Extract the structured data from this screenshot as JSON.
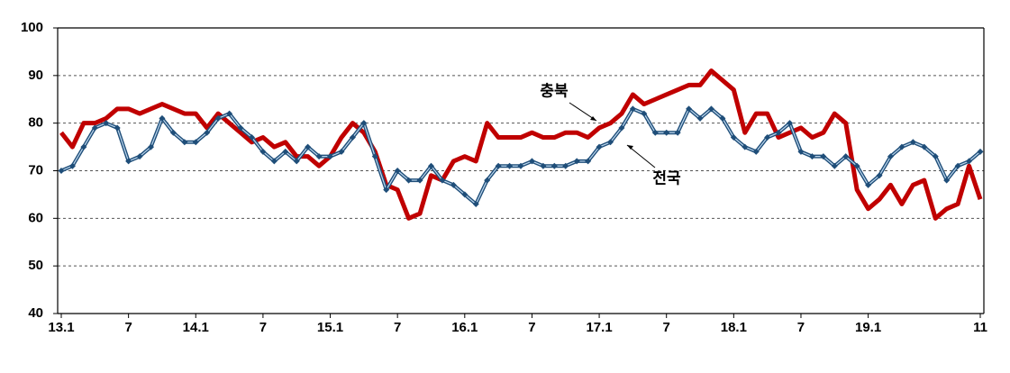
{
  "chart_data": {
    "type": "line",
    "categories": [
      "13.1",
      null,
      null,
      null,
      null,
      null,
      "7",
      null,
      null,
      null,
      null,
      null,
      "14.1",
      null,
      null,
      null,
      null,
      null,
      "7",
      null,
      null,
      null,
      null,
      null,
      "15.1",
      null,
      null,
      null,
      null,
      null,
      "7",
      null,
      null,
      null,
      null,
      null,
      "16.1",
      null,
      null,
      null,
      null,
      null,
      "7",
      null,
      null,
      null,
      null,
      null,
      "17.1",
      null,
      null,
      null,
      null,
      null,
      "7",
      null,
      null,
      null,
      null,
      null,
      "18.1",
      null,
      null,
      null,
      null,
      null,
      "7",
      null,
      null,
      null,
      null,
      null,
      "19.1",
      null,
      null,
      null,
      null,
      null,
      null,
      null,
      null,
      null,
      "11"
    ],
    "series": [
      {
        "name": "충북",
        "color": "#c00000",
        "values": [
          78,
          75,
          80,
          80,
          81,
          83,
          83,
          82,
          83,
          84,
          83,
          82,
          82,
          79,
          82,
          80,
          78,
          76,
          77,
          75,
          76,
          73,
          73,
          71,
          73,
          77,
          80,
          78,
          74,
          67,
          66,
          60,
          61,
          69,
          68,
          72,
          73,
          72,
          80,
          77,
          77,
          77,
          78,
          77,
          77,
          78,
          78,
          77,
          79,
          80,
          82,
          86,
          84,
          85,
          86,
          87,
          88,
          88,
          91,
          89,
          87,
          78,
          82,
          82,
          77,
          78,
          79,
          77,
          78,
          82,
          80,
          66,
          62,
          64,
          67,
          63,
          67,
          68,
          60,
          62,
          63,
          71,
          64
        ]
      },
      {
        "name": "전국",
        "color": "#1f4e79",
        "values": [
          70,
          71,
          75,
          79,
          80,
          79,
          72,
          73,
          75,
          81,
          78,
          76,
          76,
          78,
          81,
          82,
          79,
          77,
          74,
          72,
          74,
          72,
          75,
          73,
          73,
          74,
          77,
          80,
          73,
          66,
          70,
          68,
          68,
          71,
          68,
          67,
          65,
          63,
          68,
          71,
          71,
          71,
          72,
          71,
          71,
          71,
          72,
          72,
          75,
          76,
          79,
          83,
          82,
          78,
          78,
          78,
          83,
          81,
          83,
          81,
          77,
          75,
          74,
          77,
          78,
          80,
          74,
          73,
          73,
          71,
          73,
          71,
          67,
          69,
          73,
          75,
          76,
          75,
          73,
          68,
          71,
          72,
          74
        ]
      }
    ],
    "annotations": [
      "충북",
      "전국"
    ],
    "ylim": [
      40,
      100
    ],
    "yticks": [
      40,
      50,
      60,
      70,
      80,
      90,
      100
    ],
    "grid": true
  }
}
